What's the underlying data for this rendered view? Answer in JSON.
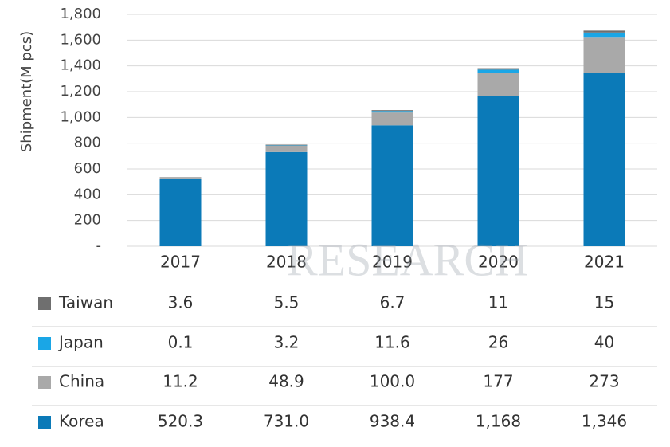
{
  "chart_data": {
    "type": "bar",
    "stacked": true,
    "y_label": "Shipment(M pcs)",
    "watermark": "RESEARCH",
    "categories": [
      "2017",
      "2018",
      "2019",
      "2020",
      "2021"
    ],
    "series": [
      {
        "name": "Taiwan",
        "color": "#6f6f6f",
        "values": [
          3.6,
          5.5,
          6.7,
          11,
          15
        ],
        "value_labels": [
          "3.6",
          "5.5",
          "6.7",
          "11",
          "15"
        ]
      },
      {
        "name": "Japan",
        "color": "#1aa6e6",
        "values": [
          0.1,
          3.2,
          11.6,
          26,
          40
        ],
        "value_labels": [
          "0.1",
          "3.2",
          "11.6",
          "26",
          "40"
        ]
      },
      {
        "name": "China",
        "color": "#a9a9a9",
        "values": [
          11.2,
          48.9,
          100.0,
          177,
          273
        ],
        "value_labels": [
          "11.2",
          "48.9",
          "100.0",
          "177",
          "273"
        ]
      },
      {
        "name": "Korea",
        "color": "#0b7ab8",
        "values": [
          520.3,
          731.0,
          938.4,
          1168,
          1346
        ],
        "value_labels": [
          "520.3",
          "731.0",
          "938.4",
          "1,168",
          "1,346"
        ]
      }
    ],
    "ylim": [
      0,
      1800
    ],
    "yticks": [
      {
        "value": 0,
        "label": "-"
      },
      200,
      400,
      600,
      800,
      {
        "value": 1000,
        "label": "1,000"
      },
      {
        "value": 1200,
        "label": "1,200"
      },
      {
        "value": 1400,
        "label": "1,400"
      },
      {
        "value": 1600,
        "label": "1,600"
      },
      {
        "value": 1800,
        "label": "1,800"
      }
    ],
    "grid": true
  }
}
